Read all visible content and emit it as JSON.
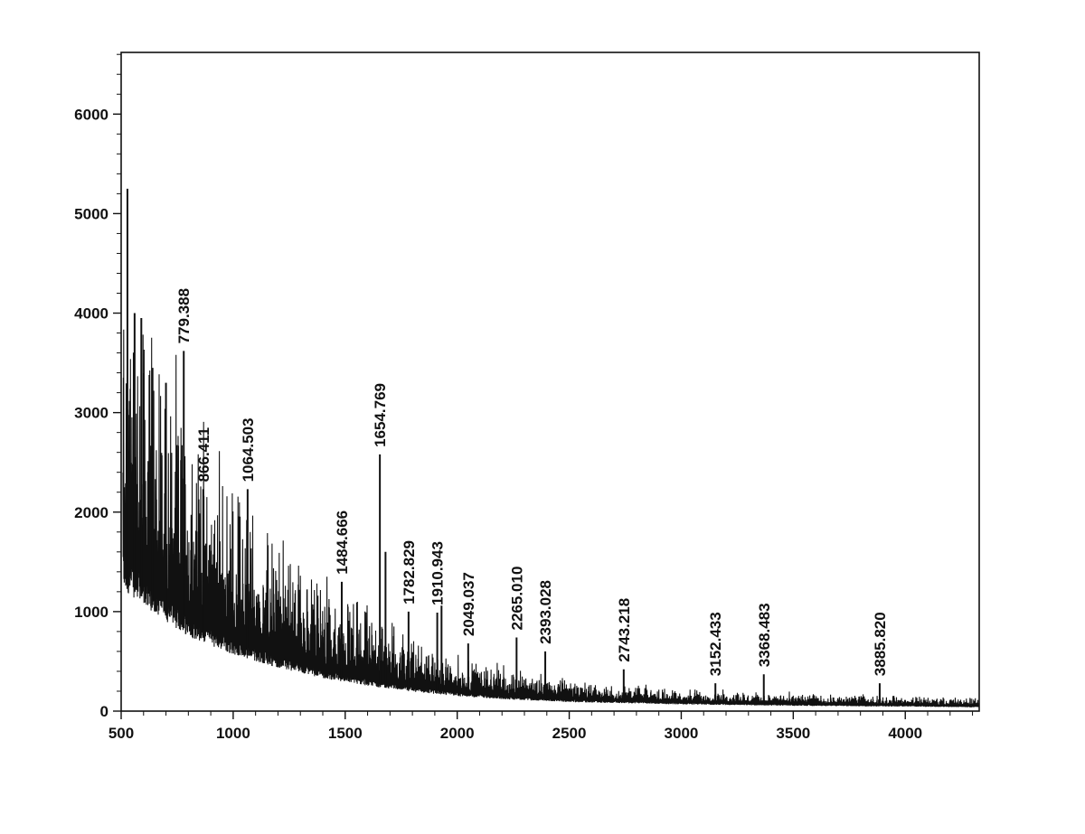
{
  "chart_data": {
    "type": "line",
    "title": "",
    "xlabel": "",
    "ylabel": "",
    "xlim": [
      500,
      4330
    ],
    "ylim": [
      0,
      6620
    ],
    "grid": false,
    "legend": "none",
    "x_ticks": [
      500,
      1000,
      1500,
      2000,
      2500,
      3000,
      3500,
      4000
    ],
    "y_ticks": [
      0,
      1000,
      2000,
      3000,
      4000,
      5000,
      6000
    ],
    "line_color": "#111111",
    "baseline": {
      "description_points": [
        [
          500,
          1650
        ],
        [
          600,
          1420
        ],
        [
          700,
          1200
        ],
        [
          800,
          1000
        ],
        [
          900,
          880
        ],
        [
          1000,
          760
        ],
        [
          1200,
          580
        ],
        [
          1400,
          440
        ],
        [
          1600,
          340
        ],
        [
          1800,
          260
        ],
        [
          2000,
          200
        ],
        [
          2200,
          160
        ],
        [
          2500,
          120
        ],
        [
          3000,
          90
        ],
        [
          3500,
          70
        ],
        [
          4000,
          60
        ],
        [
          4330,
          50
        ]
      ]
    },
    "peaks": [
      {
        "x": 528,
        "y": 5250
      },
      {
        "x": 560,
        "y": 4000
      },
      {
        "x": 590,
        "y": 3950
      },
      {
        "x": 640,
        "y": 3450
      },
      {
        "x": 700,
        "y": 3300
      },
      {
        "x": 779.388,
        "y": 3620,
        "label": "779.388"
      },
      {
        "x": 866.411,
        "y": 2230,
        "label": "866.411"
      },
      {
        "x": 1064.503,
        "y": 2230,
        "label": "1064.503"
      },
      {
        "x": 1484.666,
        "y": 1300,
        "label": "1484.666"
      },
      {
        "x": 1654.769,
        "y": 2580,
        "label": "1654.769"
      },
      {
        "x": 1680,
        "y": 1600
      },
      {
        "x": 1782.829,
        "y": 1000,
        "label": "1782.829"
      },
      {
        "x": 1910.943,
        "y": 990,
        "label": "1910.943"
      },
      {
        "x": 1930,
        "y": 1060
      },
      {
        "x": 2049.037,
        "y": 680,
        "label": "2049.037"
      },
      {
        "x": 2265.01,
        "y": 740,
        "label": "2265.010"
      },
      {
        "x": 2393.028,
        "y": 600,
        "label": "2393.028"
      },
      {
        "x": 2743.218,
        "y": 420,
        "label": "2743.218"
      },
      {
        "x": 3152.433,
        "y": 280,
        "label": "3152.433"
      },
      {
        "x": 3368.483,
        "y": 370,
        "label": "3368.483"
      },
      {
        "x": 3885.82,
        "y": 280,
        "label": "3885.820"
      }
    ]
  }
}
